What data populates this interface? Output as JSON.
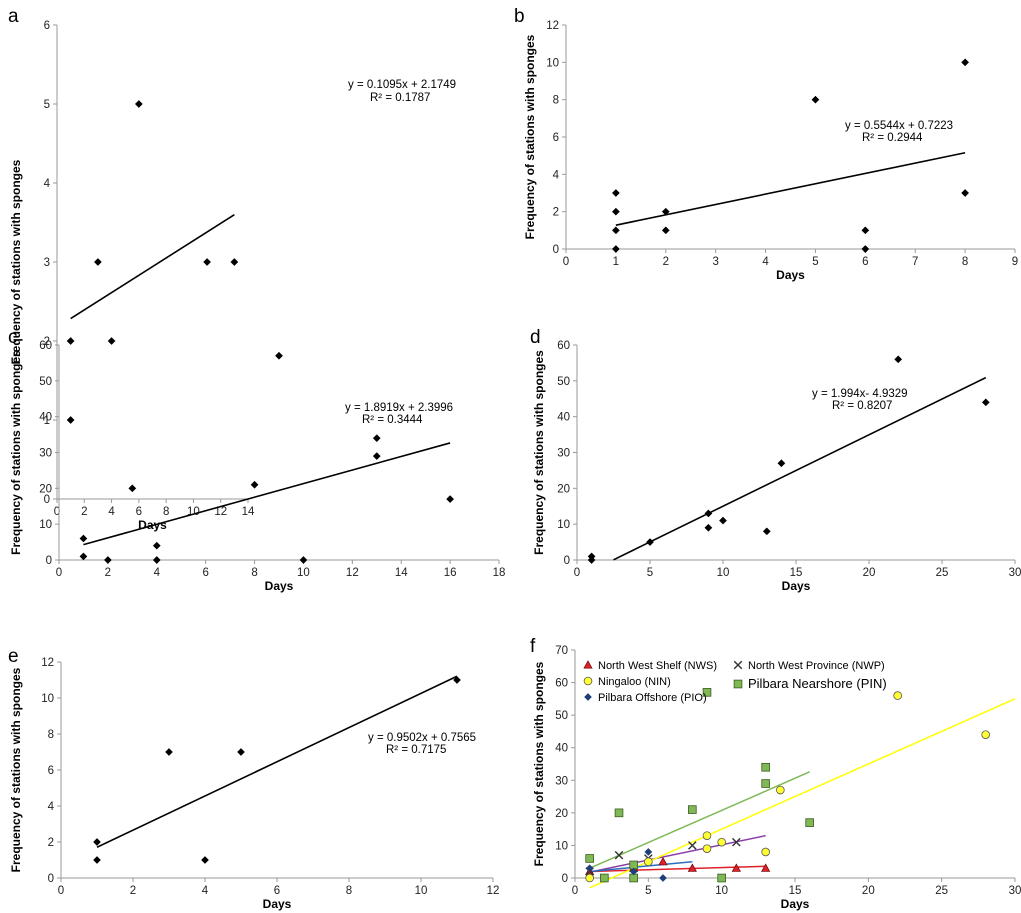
{
  "figure": {
    "panel_letters": [
      "a",
      "b",
      "c",
      "d",
      "e",
      "f"
    ]
  },
  "chart_data": [
    {
      "panel": "a",
      "type": "scatter",
      "xlabel": "Days",
      "ylabel": "Frequency of stations with  sponges",
      "xlim": [
        0,
        14
      ],
      "ylim": [
        0,
        6
      ],
      "xticks": [
        0,
        2,
        4,
        6,
        8,
        10,
        12,
        14
      ],
      "yticks": [
        0,
        1,
        2,
        3,
        4,
        5,
        6
      ],
      "points": [
        [
          1,
          1
        ],
        [
          1,
          2
        ],
        [
          3,
          3
        ],
        [
          4,
          2
        ],
        [
          6,
          5
        ],
        [
          11,
          3
        ],
        [
          13,
          3
        ]
      ],
      "trendlines": [
        {
          "slope": 0.1095,
          "intercept": 2.1749,
          "x_range": [
            1,
            13
          ],
          "color": "#000000"
        }
      ],
      "equation": "y = 0.1095x + 2.1749",
      "r2": "R² = 0.1787"
    },
    {
      "panel": "b",
      "type": "scatter",
      "xlabel": "Days",
      "ylabel": "Frequency of stations with sponges",
      "xlim": [
        0,
        9
      ],
      "ylim": [
        0,
        12
      ],
      "xticks": [
        0,
        1,
        2,
        3,
        4,
        5,
        6,
        7,
        8,
        9
      ],
      "yticks": [
        0,
        2,
        4,
        6,
        8,
        10,
        12
      ],
      "points": [
        [
          1,
          0
        ],
        [
          1,
          1
        ],
        [
          1,
          2
        ],
        [
          1,
          3
        ],
        [
          2,
          1
        ],
        [
          2,
          2
        ],
        [
          5,
          8
        ],
        [
          6,
          0
        ],
        [
          6,
          1
        ],
        [
          8,
          3
        ],
        [
          8,
          10
        ]
      ],
      "trendlines": [
        {
          "slope": 0.5544,
          "intercept": 0.7223,
          "x_range": [
            1,
            8
          ],
          "color": "#000000"
        }
      ],
      "equation": "y = 0.5544x + 0.7223",
      "r2": "R² = 0.2944"
    },
    {
      "panel": "c",
      "type": "scatter",
      "xlabel": "Days",
      "ylabel": "Frequency of stations with  sponges",
      "xlim": [
        0,
        18
      ],
      "ylim": [
        0,
        60
      ],
      "xticks": [
        0,
        2,
        4,
        6,
        8,
        10,
        12,
        14,
        16,
        18
      ],
      "yticks": [
        0,
        10,
        20,
        30,
        40,
        50,
        60
      ],
      "points": [
        [
          1,
          1
        ],
        [
          1,
          6
        ],
        [
          2,
          0
        ],
        [
          3,
          20
        ],
        [
          4,
          0
        ],
        [
          4,
          4
        ],
        [
          8,
          21
        ],
        [
          9,
          57
        ],
        [
          10,
          0
        ],
        [
          13,
          29
        ],
        [
          13,
          34
        ],
        [
          16,
          17
        ]
      ],
      "trendlines": [
        {
          "slope": 1.8919,
          "intercept": 2.3996,
          "x_range": [
            1,
            16
          ],
          "color": "#000000"
        }
      ],
      "equation": "y = 1.8919x + 2.3996",
      "r2": "R² = 0.3444"
    },
    {
      "panel": "d",
      "type": "scatter",
      "xlabel": "Days",
      "ylabel": "Frequency of stations with  sponges",
      "xlim": [
        0,
        30
      ],
      "ylim": [
        0,
        60
      ],
      "xticks": [
        0,
        5,
        10,
        15,
        20,
        25,
        30
      ],
      "yticks": [
        0,
        10,
        20,
        30,
        40,
        50,
        60
      ],
      "points": [
        [
          1,
          0
        ],
        [
          1,
          1
        ],
        [
          5,
          5
        ],
        [
          9,
          9
        ],
        [
          9,
          13
        ],
        [
          10,
          11
        ],
        [
          13,
          8
        ],
        [
          14,
          27
        ],
        [
          22,
          56
        ],
        [
          28,
          44
        ]
      ],
      "trendlines": [
        {
          "slope": 1.994,
          "intercept": -4.9329,
          "x_range": [
            2.5,
            28
          ],
          "color": "#000000"
        }
      ],
      "equation": "y = 1.994x- 4.9329",
      "r2": "R² = 0.8207"
    },
    {
      "panel": "e",
      "type": "scatter",
      "xlabel": "Days",
      "ylabel": "Frequency of stations with  sponges",
      "xlim": [
        0,
        12
      ],
      "ylim": [
        0,
        12
      ],
      "xticks": [
        0,
        2,
        4,
        6,
        8,
        10,
        12
      ],
      "yticks": [
        0,
        2,
        4,
        6,
        8,
        10,
        12
      ],
      "points": [
        [
          1,
          1
        ],
        [
          1,
          2
        ],
        [
          3,
          7
        ],
        [
          4,
          1
        ],
        [
          5,
          7
        ],
        [
          11,
          11
        ]
      ],
      "trendlines": [
        {
          "slope": 0.9502,
          "intercept": 0.7565,
          "x_range": [
            1,
            11
          ],
          "color": "#000000"
        }
      ],
      "equation": "y = 0.9502x + 0.7565",
      "r2": "R² = 0.7175"
    },
    {
      "panel": "f",
      "type": "scatter",
      "xlabel": "Days",
      "ylabel": "Frequency of stations with  sponges",
      "xlim": [
        0,
        30
      ],
      "ylim": [
        0,
        70
      ],
      "xticks": [
        0,
        5,
        10,
        15,
        20,
        25,
        30
      ],
      "yticks": [
        0,
        10,
        20,
        30,
        40,
        50,
        60,
        70
      ],
      "legend_position": "top",
      "series": [
        {
          "name": "North West Shelf (NWS)",
          "marker": "triangle",
          "color": "#e0202a",
          "points": [
            [
              1,
              2
            ],
            [
              4,
              3
            ],
            [
              6,
              5
            ],
            [
              8,
              3
            ],
            [
              11,
              3
            ],
            [
              13,
              3
            ]
          ],
          "trend": {
            "x_range": [
              1,
              13
            ],
            "y_range": [
              2,
              3.6
            ],
            "color": "#e0202a"
          }
        },
        {
          "name": "North West Province (NWP)",
          "marker": "cross",
          "color": "#333333",
          "points": [
            [
              1,
              2
            ],
            [
              3,
              7
            ],
            [
              4,
              4
            ],
            [
              5,
              6
            ],
            [
              8,
              10
            ],
            [
              11,
              11
            ]
          ],
          "trend": {
            "x_range": [
              1,
              13
            ],
            "y_range": [
              1.8,
              13
            ],
            "color": "#8b3ea8"
          }
        },
        {
          "name": "Ningaloo (NIN)",
          "marker": "circle",
          "color": "#ffff33",
          "points": [
            [
              1,
              0
            ],
            [
              2,
              0
            ],
            [
              5,
              5
            ],
            [
              9,
              9
            ],
            [
              9,
              13
            ],
            [
              10,
              11
            ],
            [
              13,
              8
            ],
            [
              14,
              27
            ],
            [
              22,
              56
            ],
            [
              28,
              44
            ]
          ],
          "trend": {
            "x_range": [
              1,
              30
            ],
            "y_range": [
              -3,
              55
            ],
            "color": "#ffff00"
          }
        },
        {
          "name": "Pilbara Nearshore (PIN)",
          "marker": "square",
          "color": "#7fb855",
          "points": [
            [
              1,
              6
            ],
            [
              2,
              0
            ],
            [
              3,
              20
            ],
            [
              4,
              0
            ],
            [
              4,
              4
            ],
            [
              8,
              21
            ],
            [
              9,
              57
            ],
            [
              10,
              0
            ],
            [
              13,
              29
            ],
            [
              13,
              34
            ],
            [
              16,
              17
            ]
          ],
          "trend": {
            "x_range": [
              1,
              16
            ],
            "y_range": [
              3,
              32.6
            ],
            "color": "#7fb855"
          }
        },
        {
          "name": "Pilbara Offshore (PIO)",
          "marker": "diamond",
          "color": "#1f3f7a",
          "points": [
            [
              1,
              3
            ],
            [
              4,
              2
            ],
            [
              5,
              8
            ],
            [
              6,
              0
            ]
          ],
          "trend": {
            "x_range": [
              1,
              8
            ],
            "y_range": [
              2,
              5
            ],
            "color": "#2c6fbf"
          }
        }
      ]
    }
  ]
}
